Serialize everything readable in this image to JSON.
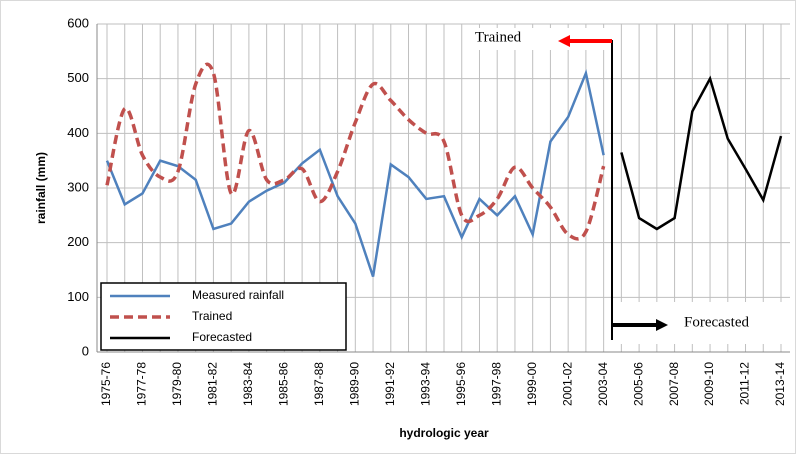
{
  "chart_data": {
    "type": "line",
    "y_label": "rainfall (mm)",
    "x_label": "hydrologic year",
    "categories": [
      "1975-76",
      null,
      "1977-78",
      null,
      "1979-80",
      null,
      "1981-82",
      null,
      "1983-84",
      null,
      "1985-86",
      null,
      "1987-88",
      null,
      "1989-90",
      null,
      "1991-92",
      null,
      "1993-94",
      null,
      "1995-96",
      null,
      "1997-98",
      null,
      "1999-00",
      null,
      "2001-02",
      null,
      "2003-04",
      null,
      "2005-06",
      null,
      "2007-08",
      null,
      "2009-10",
      null,
      "2011-12",
      null,
      "2013-14"
    ],
    "series": [
      {
        "name": "Measured rainfall",
        "color": "#4f81bd",
        "style": "solid",
        "values": [
          350,
          270,
          290,
          350,
          340,
          315,
          225,
          235,
          275,
          295,
          310,
          345,
          370,
          285,
          235,
          138,
          343,
          320,
          280,
          285,
          210,
          280,
          250,
          285,
          215,
          385,
          430,
          510,
          360,
          null,
          null,
          null,
          null,
          null,
          null,
          null,
          null,
          null,
          null
        ]
      },
      {
        "name": "Trained",
        "color": "#c0504d",
        "style": "dashed",
        "values": [
          305,
          445,
          360,
          320,
          330,
          490,
          510,
          290,
          405,
          315,
          315,
          335,
          275,
          330,
          420,
          490,
          460,
          425,
          400,
          385,
          250,
          250,
          280,
          338,
          300,
          265,
          215,
          220,
          340,
          null,
          null,
          null,
          null,
          null,
          null,
          null,
          null,
          null,
          null
        ]
      },
      {
        "name": "Forecasted",
        "color": "#000000",
        "style": "solid",
        "values": [
          null,
          null,
          null,
          null,
          null,
          null,
          null,
          null,
          null,
          null,
          null,
          null,
          null,
          null,
          null,
          null,
          null,
          null,
          null,
          null,
          null,
          null,
          null,
          null,
          null,
          null,
          null,
          null,
          null,
          365,
          245,
          225,
          245,
          440,
          500,
          390,
          335,
          278,
          395
        ]
      }
    ],
    "ylim": [
      0,
      600
    ],
    "yticks": [
      0,
      100,
      200,
      300,
      400,
      500,
      600
    ],
    "grid": true,
    "annotations": [
      {
        "text": "Trained",
        "color": "#ff0000"
      },
      {
        "text": "Forecasted",
        "color": "#000000"
      }
    ]
  }
}
